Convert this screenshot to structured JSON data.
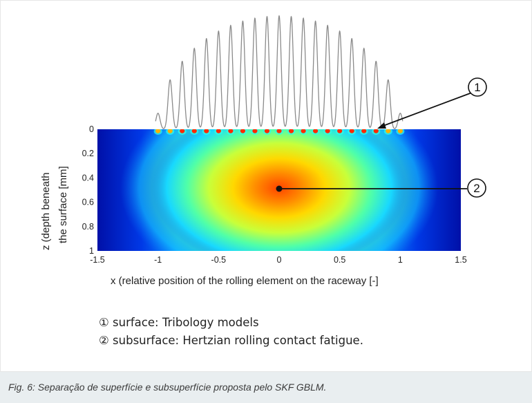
{
  "chart_data": {
    "type": "heatmap",
    "title": "",
    "xlabel": "x (relative position of the rolling element on the raceway   [-]",
    "ylabel_line1": "z (depth beneath",
    "ylabel_line2": "the surface  [mm]",
    "xlim": [
      -1.5,
      1.5
    ],
    "ylim": [
      1,
      0
    ],
    "x_ticks": [
      "-1.5",
      "-1",
      "-0.5",
      "0",
      "0.5",
      "1",
      "1.5"
    ],
    "x_tick_values": [
      -1.5,
      -1,
      -0.5,
      0,
      0.5,
      1,
      1.5
    ],
    "y_ticks": [
      "0",
      "0.2",
      "0.4",
      "0.6",
      "0.8",
      "1"
    ],
    "y_tick_values": [
      0,
      0.2,
      0.4,
      0.6,
      0.8,
      1
    ],
    "colormap": "jet",
    "max_stress_point": {
      "x": 0,
      "z": 0.5
    },
    "surface_pressure_peaks_x": [
      -1.0,
      -0.9,
      -0.8,
      -0.7,
      -0.6,
      -0.5,
      -0.4,
      -0.3,
      -0.2,
      -0.1,
      0.0,
      0.1,
      0.2,
      0.3,
      0.4,
      0.5,
      0.6,
      0.7,
      0.8,
      0.9,
      1.0
    ],
    "surface_pressure_extent": [
      -1.0,
      1.0
    ],
    "callouts": [
      {
        "label": "1",
        "target": {
          "x": 0.8,
          "z": 0
        }
      },
      {
        "label": "2",
        "target": {
          "x": 0,
          "z": 0.5
        }
      }
    ]
  },
  "legend": {
    "item1": "① surface: Tribology models",
    "item2": "② subsurface: Hertzian rolling contact fatigue."
  },
  "caption": "Fig. 6: Separação de superfície e subsuperfície proposta pelo SKF GBLM."
}
